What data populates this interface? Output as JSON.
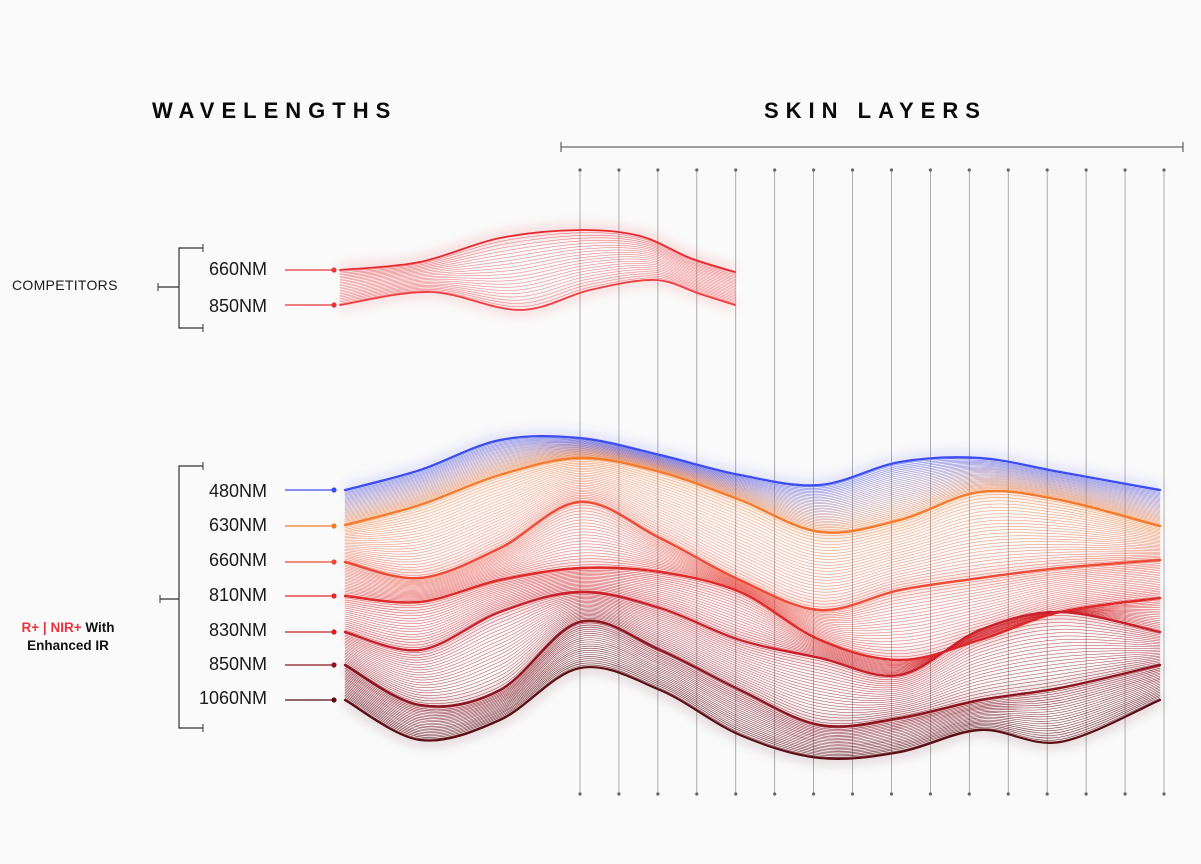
{
  "headings": {
    "wavelengths": "WAVELENGTHS",
    "skin_layers": "SKIN LAYERS"
  },
  "groups": {
    "competitors": {
      "label": "COMPETITORS",
      "wavelengths": [
        {
          "label": "660NM",
          "color": "#e8343c"
        },
        {
          "label": "850NM",
          "color": "#e8343c"
        }
      ]
    },
    "product": {
      "label_part1": "R+",
      "label_sep": " | ",
      "label_part2": "NIR+",
      "label_part3": " With",
      "label_line2": "Enhanced IR",
      "accent_color": "#e8343c",
      "wavelengths": [
        {
          "label": "480NM",
          "color": "#3b4cf0"
        },
        {
          "label": "630NM",
          "color": "#f47a2c"
        },
        {
          "label": "660NM",
          "color": "#ee4a35"
        },
        {
          "label": "810NM",
          "color": "#e02a2a"
        },
        {
          "label": "830NM",
          "color": "#c9202a"
        },
        {
          "label": "850NM",
          "color": "#8e1420"
        },
        {
          "label": "1060NM",
          "color": "#5c0d14"
        }
      ]
    }
  },
  "skin_layer_count": 16
}
